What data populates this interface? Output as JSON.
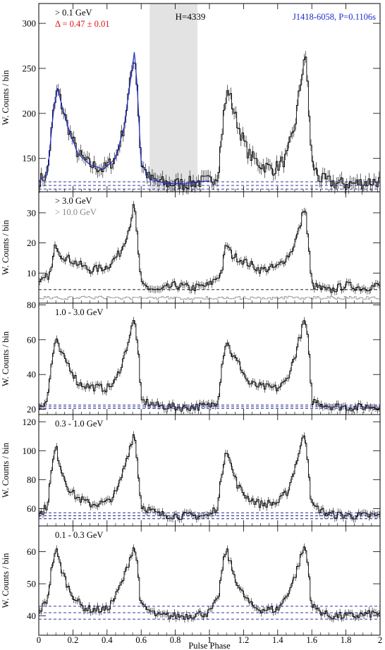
{
  "figure": {
    "xlabel": "Pulse Phase",
    "x_ticks": [
      "0",
      "0.2",
      "0.4",
      "0.6",
      "0.8",
      "1",
      "1.2",
      "1.4",
      "1.6",
      "1.8",
      "2"
    ]
  },
  "colors": {
    "black": "#000000",
    "blue": "#1f2bd0",
    "red": "#e01010",
    "gray": "#888888",
    "offpulse_shade": "#e3e3e3",
    "baseline_dash": "#1a1a8c"
  },
  "panels": [
    {
      "ylabel": "W. Counts / bin",
      "labels": [
        {
          "text": "> 0.1 GeV",
          "color": "black"
        },
        {
          "text": "Δ = 0.47 ± 0.01",
          "color": "red"
        }
      ],
      "top_center": "H=4339",
      "top_right": "J1418-6058, P=0.1106s",
      "y_ticks": [
        "150",
        "200",
        "250",
        "300"
      ]
    },
    {
      "ylabel": "W. Counts / bin",
      "labels": [
        {
          "text": "> 3.0 GeV",
          "color": "black"
        },
        {
          "text": "> 10.0 GeV",
          "color": "gray"
        }
      ],
      "y_ticks": [
        "10",
        "20",
        "30"
      ]
    },
    {
      "ylabel": "W. Counts / bin",
      "labels": [
        {
          "text": "1.0 - 3.0 GeV",
          "color": "black"
        }
      ],
      "y_ticks": [
        "20",
        "40",
        "60",
        "80"
      ]
    },
    {
      "ylabel": "W. Counts / bin",
      "labels": [
        {
          "text": "0.3 - 1.0 GeV",
          "color": "black"
        }
      ],
      "y_ticks": [
        "60",
        "80",
        "100",
        "120"
      ]
    },
    {
      "ylabel": "W. Counts / bin",
      "labels": [
        {
          "text": "0.1 - 0.3 GeV",
          "color": "black"
        }
      ],
      "y_ticks": [
        "40",
        "50",
        "60"
      ]
    }
  ],
  "chart_data": [
    {
      "type": "line",
      "title": "",
      "label": "> 0.1 GeV",
      "ylabel": "W. Counts / bin",
      "xlabel": "Pulse Phase",
      "xlim": [
        0,
        2
      ],
      "ylim": [
        113,
        322
      ],
      "offpulse_shade": [
        0.65,
        0.93
      ],
      "baseline_lines": [
        116,
        120,
        124
      ],
      "profile_keypoints": [
        [
          0.0,
          125
        ],
        [
          0.05,
          132
        ],
        [
          0.085,
          200
        ],
        [
          0.11,
          228
        ],
        [
          0.14,
          205
        ],
        [
          0.18,
          180
        ],
        [
          0.23,
          155
        ],
        [
          0.3,
          143
        ],
        [
          0.38,
          138
        ],
        [
          0.45,
          150
        ],
        [
          0.5,
          185
        ],
        [
          0.54,
          240
        ],
        [
          0.56,
          268
        ],
        [
          0.575,
          235
        ],
        [
          0.6,
          145
        ],
        [
          0.65,
          127
        ],
        [
          0.75,
          122
        ],
        [
          0.85,
          122
        ],
        [
          0.93,
          124
        ],
        [
          1.0,
          125
        ]
      ],
      "model_fit": "blue"
    },
    {
      "type": "line",
      "title": "",
      "label": "> 3.0 GeV",
      "ylabel": "W. Counts / bin",
      "xlabel": "Pulse Phase",
      "xlim": [
        0,
        2
      ],
      "ylim": [
        0,
        37
      ],
      "baseline_lines": [
        4.5
      ],
      "profile_keypoints": [
        [
          0.0,
          6
        ],
        [
          0.07,
          10
        ],
        [
          0.1,
          20
        ],
        [
          0.13,
          16
        ],
        [
          0.2,
          14
        ],
        [
          0.3,
          11
        ],
        [
          0.4,
          12
        ],
        [
          0.48,
          17
        ],
        [
          0.53,
          25
        ],
        [
          0.56,
          33
        ],
        [
          0.58,
          20
        ],
        [
          0.6,
          6
        ],
        [
          0.7,
          4
        ],
        [
          0.8,
          6
        ],
        [
          0.9,
          5
        ],
        [
          1.0,
          6
        ]
      ],
      "secondary_series": {
        "name": "> 10.0 GeV",
        "level": 1.2
      }
    },
    {
      "type": "line",
      "title": "",
      "label": "1.0 - 3.0 GeV",
      "ylabel": "W. Counts / bin",
      "xlabel": "Pulse Phase",
      "xlim": [
        0,
        2
      ],
      "ylim": [
        17,
        81
      ],
      "baseline_lines": [
        20.5,
        21.5,
        22.5
      ],
      "profile_keypoints": [
        [
          0.0,
          22
        ],
        [
          0.05,
          25
        ],
        [
          0.08,
          50
        ],
        [
          0.1,
          60
        ],
        [
          0.13,
          52
        ],
        [
          0.18,
          45
        ],
        [
          0.23,
          35
        ],
        [
          0.3,
          33
        ],
        [
          0.4,
          32
        ],
        [
          0.45,
          36
        ],
        [
          0.5,
          50
        ],
        [
          0.54,
          65
        ],
        [
          0.56,
          72
        ],
        [
          0.58,
          58
        ],
        [
          0.6,
          25
        ],
        [
          0.7,
          22
        ],
        [
          0.85,
          21
        ],
        [
          1.0,
          22
        ]
      ]
    },
    {
      "type": "line",
      "title": "",
      "label": "0.3 - 1.0 GeV",
      "ylabel": "W. Counts / bin",
      "xlabel": "Pulse Phase",
      "xlim": [
        0,
        2
      ],
      "ylim": [
        48,
        125
      ],
      "baseline_lines": [
        53,
        55,
        57
      ],
      "profile_keypoints": [
        [
          0.0,
          55
        ],
        [
          0.05,
          62
        ],
        [
          0.08,
          90
        ],
        [
          0.1,
          103
        ],
        [
          0.13,
          88
        ],
        [
          0.17,
          75
        ],
        [
          0.22,
          68
        ],
        [
          0.3,
          63
        ],
        [
          0.4,
          64
        ],
        [
          0.46,
          72
        ],
        [
          0.5,
          88
        ],
        [
          0.54,
          105
        ],
        [
          0.56,
          113
        ],
        [
          0.58,
          90
        ],
        [
          0.6,
          62
        ],
        [
          0.7,
          56
        ],
        [
          0.85,
          55
        ],
        [
          1.0,
          55
        ]
      ]
    },
    {
      "type": "line",
      "title": "",
      "label": "0.1 - 0.3 GeV",
      "ylabel": "W. Counts / bin",
      "xlabel": "Pulse Phase",
      "xlim": [
        0,
        2
      ],
      "ylim": [
        34,
        68
      ],
      "baseline_lines": [
        39,
        41,
        43
      ],
      "profile_keypoints": [
        [
          0.0,
          41
        ],
        [
          0.05,
          45
        ],
        [
          0.08,
          56
        ],
        [
          0.1,
          61
        ],
        [
          0.13,
          55
        ],
        [
          0.18,
          48
        ],
        [
          0.25,
          43
        ],
        [
          0.3,
          42
        ],
        [
          0.4,
          42
        ],
        [
          0.45,
          46
        ],
        [
          0.5,
          52
        ],
        [
          0.54,
          59
        ],
        [
          0.56,
          62
        ],
        [
          0.58,
          55
        ],
        [
          0.6,
          43
        ],
        [
          0.7,
          40
        ],
        [
          0.85,
          40
        ],
        [
          1.0,
          41
        ]
      ]
    }
  ]
}
